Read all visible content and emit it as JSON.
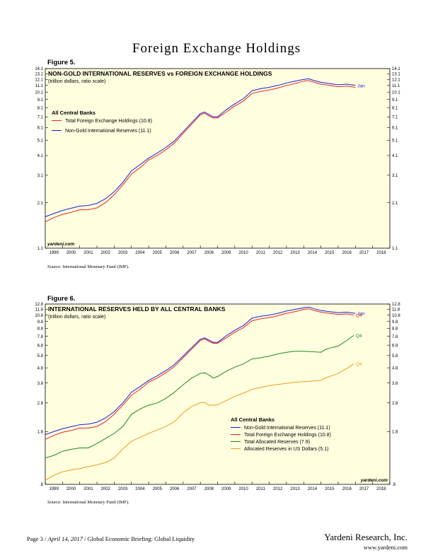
{
  "page_title": "Foreign Exchange Holdings",
  "footer": {
    "page": "Page 3",
    "date": "April 14, 2017",
    "doc": "Global Economic Briefing: Global Liquidity",
    "brand": "Yardeni Research, Inc.",
    "url": "www.yardeni.com"
  },
  "chart_data": [
    {
      "figure": "Figure 5.",
      "type": "line",
      "title": "NON-GOLD INTERNATIONAL RESERVES vs FOREIGN EXCHANGE HOLDINGS",
      "subtitle": "(trillion dollars, ratio scale)",
      "legend_title": "All Central Banks",
      "legend_placement": "top-left",
      "watermark": "yardeni.com",
      "source": "Source: International Monetary Fund (IMF).",
      "y_scale": "log",
      "ylim": [
        1.1,
        14.1
      ],
      "yticks": [
        "1.1",
        "2.1",
        "3.1",
        "4.1",
        "5.1",
        "6.1",
        "7.1",
        "8.1",
        "9.1",
        "10.1",
        "11.1",
        "12.1",
        "13.1",
        "14.1"
      ],
      "xlim": [
        1999,
        2019
      ],
      "xticks": [
        "1999",
        "2000",
        "2001",
        "2002",
        "2003",
        "2004",
        "2005",
        "2006",
        "2007",
        "2008",
        "2009",
        "2010",
        "2011",
        "2012",
        "2013",
        "2014",
        "2015",
        "2016",
        "2017",
        "2018"
      ],
      "end_label": "Jan",
      "series": [
        {
          "name": "Total Foreign Exchange Holdings (10.8)",
          "color": "#e8231e",
          "x": [
            1999.0,
            1999.5,
            2000.0,
            2000.5,
            2001.0,
            2001.5,
            2002.0,
            2002.5,
            2003.0,
            2003.5,
            2004.0,
            2004.5,
            2005.0,
            2005.5,
            2006.0,
            2006.5,
            2007.0,
            2007.5,
            2008.0,
            2008.25,
            2008.5,
            2008.75,
            2009.0,
            2009.5,
            2010.0,
            2010.5,
            2011.0,
            2011.5,
            2012.0,
            2012.5,
            2013.0,
            2013.5,
            2014.0,
            2014.3,
            2014.6,
            2015.0,
            2015.5,
            2016.0,
            2016.5,
            2017.0
          ],
          "y": [
            1.6,
            1.7,
            1.78,
            1.83,
            1.9,
            1.9,
            1.95,
            2.1,
            2.35,
            2.7,
            3.15,
            3.45,
            3.85,
            4.1,
            4.45,
            4.9,
            5.6,
            6.4,
            7.3,
            7.5,
            7.2,
            7.0,
            7.0,
            7.6,
            8.3,
            8.9,
            9.9,
            10.2,
            10.4,
            10.7,
            11.1,
            11.4,
            11.8,
            11.9,
            11.6,
            11.3,
            11.1,
            10.9,
            11.0,
            10.8
          ]
        },
        {
          "name": "Non-Gold International Reserves (11.1)",
          "color": "#1a1ad6",
          "x": [
            1999.0,
            1999.5,
            2000.0,
            2000.5,
            2001.0,
            2001.5,
            2002.0,
            2002.5,
            2003.0,
            2003.5,
            2004.0,
            2004.5,
            2005.0,
            2005.5,
            2006.0,
            2006.5,
            2007.0,
            2007.5,
            2008.0,
            2008.25,
            2008.5,
            2008.75,
            2009.0,
            2009.5,
            2010.0,
            2010.5,
            2011.0,
            2011.5,
            2012.0,
            2012.5,
            2013.0,
            2013.5,
            2014.0,
            2014.3,
            2014.6,
            2015.0,
            2015.5,
            2016.0,
            2016.5,
            2017.0
          ],
          "y": [
            1.72,
            1.8,
            1.88,
            1.94,
            2.0,
            2.02,
            2.08,
            2.22,
            2.45,
            2.8,
            3.3,
            3.6,
            3.95,
            4.25,
            4.6,
            5.05,
            5.75,
            6.55,
            7.45,
            7.6,
            7.35,
            7.1,
            7.1,
            7.85,
            8.55,
            9.2,
            10.3,
            10.6,
            10.8,
            11.1,
            11.5,
            11.8,
            12.1,
            12.2,
            11.9,
            11.6,
            11.4,
            11.2,
            11.3,
            11.1
          ]
        }
      ]
    },
    {
      "figure": "Figure 6.",
      "type": "line",
      "title": "INTERNATIONAL RESERVES HELD BY ALL CENTRAL BANKS",
      "subtitle": "(trillion dollars, ratio scale)",
      "legend_title": "All Central Banks",
      "legend_placement": "bottom-right",
      "watermark": "yardeni.com",
      "source": "Source: International Monetary Fund (IMF).",
      "y_scale": "log",
      "ylim": [
        0.8,
        12.8
      ],
      "yticks_left": [
        ".8",
        "1.8",
        "2.8",
        "3.8",
        "4.8",
        "5.8",
        "6.8",
        "7.8",
        "8.8",
        "9.8",
        "10.8",
        "11.8",
        "12.8"
      ],
      "yticks_right": [
        ".8",
        "1.8",
        "2.8",
        "3.8",
        "4.8",
        "5.8",
        "6.8",
        "7.8",
        "8.8",
        "9.8",
        "10.8",
        "11.8",
        "12.8"
      ],
      "xlim": [
        1999,
        2019
      ],
      "xticks": [
        "1999",
        "2000",
        "2001",
        "2002",
        "2003",
        "2004",
        "2005",
        "2006",
        "2007",
        "2008",
        "2009",
        "2010",
        "2011",
        "2012",
        "2013",
        "2014",
        "2015",
        "2016",
        "2017",
        "2018"
      ],
      "series": [
        {
          "name": "Non-Gold International Reserves (11.1)",
          "color": "#1a1ad6",
          "end_label": "Jan",
          "x": [
            1999.0,
            1999.5,
            2000.0,
            2000.5,
            2001.0,
            2001.5,
            2002.0,
            2002.5,
            2003.0,
            2003.5,
            2004.0,
            2004.5,
            2005.0,
            2005.5,
            2006.0,
            2006.5,
            2007.0,
            2007.5,
            2008.0,
            2008.25,
            2008.5,
            2008.75,
            2009.0,
            2009.5,
            2010.0,
            2010.5,
            2011.0,
            2011.5,
            2012.0,
            2012.5,
            2013.0,
            2013.5,
            2014.0,
            2014.3,
            2014.6,
            2015.0,
            2015.5,
            2016.0,
            2016.5,
            2017.0
          ],
          "y": [
            1.72,
            1.8,
            1.88,
            1.94,
            2.0,
            2.02,
            2.08,
            2.22,
            2.45,
            2.8,
            3.3,
            3.6,
            3.95,
            4.25,
            4.6,
            5.05,
            5.75,
            6.55,
            7.45,
            7.6,
            7.35,
            7.1,
            7.1,
            7.85,
            8.55,
            9.2,
            10.3,
            10.6,
            10.8,
            11.1,
            11.5,
            11.8,
            12.1,
            12.2,
            11.9,
            11.6,
            11.4,
            11.2,
            11.3,
            11.1
          ]
        },
        {
          "name": "Total Foreign Exchange Holdings (10.8)",
          "color": "#e8231e",
          "end_label": "Q4",
          "x": [
            1999.0,
            1999.5,
            2000.0,
            2000.5,
            2001.0,
            2001.5,
            2002.0,
            2002.5,
            2003.0,
            2003.5,
            2004.0,
            2004.5,
            2005.0,
            2005.5,
            2006.0,
            2006.5,
            2007.0,
            2007.5,
            2008.0,
            2008.25,
            2008.5,
            2008.75,
            2009.0,
            2009.5,
            2010.0,
            2010.5,
            2011.0,
            2011.5,
            2012.0,
            2012.5,
            2013.0,
            2013.5,
            2014.0,
            2014.3,
            2014.6,
            2015.0,
            2015.5,
            2016.0,
            2016.5,
            2016.9
          ],
          "y": [
            1.6,
            1.7,
            1.78,
            1.83,
            1.9,
            1.9,
            1.95,
            2.1,
            2.35,
            2.7,
            3.15,
            3.45,
            3.85,
            4.1,
            4.45,
            4.9,
            5.6,
            6.4,
            7.3,
            7.5,
            7.2,
            7.0,
            7.0,
            7.6,
            8.3,
            8.9,
            9.9,
            10.2,
            10.4,
            10.7,
            11.1,
            11.4,
            11.8,
            11.9,
            11.6,
            11.3,
            11.1,
            10.9,
            11.0,
            10.8
          ]
        },
        {
          "name": "Total Allocated Reserves (7.9)",
          "color": "#1a8a1a",
          "end_label": "Q4",
          "x": [
            1999.0,
            1999.5,
            2000.0,
            2000.5,
            2001.0,
            2001.5,
            2002.0,
            2002.5,
            2003.0,
            2003.5,
            2004.0,
            2004.5,
            2005.0,
            2005.5,
            2006.0,
            2006.5,
            2007.0,
            2007.5,
            2008.0,
            2008.25,
            2008.5,
            2008.75,
            2009.0,
            2009.5,
            2010.0,
            2010.5,
            2011.0,
            2011.5,
            2012.0,
            2012.5,
            2013.0,
            2013.5,
            2014.0,
            2014.5,
            2015.0,
            2015.25,
            2015.5,
            2015.75,
            2016.0,
            2016.5,
            2016.9
          ],
          "y": [
            1.2,
            1.25,
            1.33,
            1.37,
            1.4,
            1.4,
            1.5,
            1.62,
            1.75,
            1.95,
            2.35,
            2.55,
            2.7,
            2.8,
            3.0,
            3.3,
            3.7,
            4.1,
            4.4,
            4.45,
            4.3,
            4.1,
            4.2,
            4.55,
            4.85,
            5.1,
            5.5,
            5.6,
            5.75,
            5.95,
            6.1,
            6.2,
            6.2,
            6.15,
            6.1,
            6.35,
            6.5,
            6.6,
            6.7,
            7.3,
            7.9
          ]
        },
        {
          "name": "Allocated Reserves in US Dollars (5.1)",
          "color": "#f29a1a",
          "end_label": "Q4",
          "x": [
            1999.0,
            1999.5,
            2000.0,
            2000.5,
            2001.0,
            2001.5,
            2002.0,
            2002.5,
            2003.0,
            2003.5,
            2004.0,
            2004.5,
            2005.0,
            2005.5,
            2006.0,
            2006.5,
            2007.0,
            2007.5,
            2008.0,
            2008.25,
            2008.5,
            2008.75,
            2009.0,
            2009.5,
            2010.0,
            2010.5,
            2011.0,
            2011.5,
            2012.0,
            2012.5,
            2013.0,
            2013.5,
            2014.0,
            2014.5,
            2015.0,
            2015.25,
            2015.5,
            2015.75,
            2016.0,
            2016.5,
            2016.9
          ],
          "y": [
            0.85,
            0.92,
            0.97,
            1.0,
            1.02,
            1.05,
            1.08,
            1.12,
            1.2,
            1.38,
            1.55,
            1.65,
            1.75,
            1.85,
            1.95,
            2.1,
            2.4,
            2.65,
            2.8,
            2.82,
            2.7,
            2.7,
            2.72,
            2.9,
            3.1,
            3.25,
            3.45,
            3.55,
            3.65,
            3.72,
            3.78,
            3.85,
            3.88,
            3.92,
            3.95,
            4.1,
            4.2,
            4.3,
            4.4,
            4.75,
            5.1
          ]
        }
      ]
    }
  ]
}
